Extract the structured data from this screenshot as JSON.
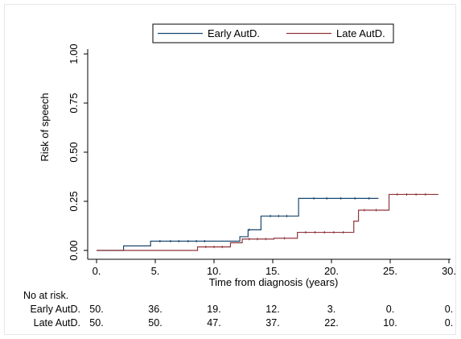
{
  "chart_data": {
    "type": "line",
    "subtype": "step (Kaplan-Meier cumulative risk)",
    "ylabel": "Risk of speech",
    "xlabel": "Time from diagnosis (years)",
    "xlim": [
      0,
      30
    ],
    "ylim": [
      0,
      1
    ],
    "xticks": [
      0,
      5,
      10,
      15,
      20,
      25,
      30
    ],
    "xtick_labels": [
      "0.",
      "5.",
      "10.",
      "15.",
      "20.",
      "25.",
      "30."
    ],
    "yticks": [
      0,
      0.25,
      0.5,
      0.75,
      1
    ],
    "ytick_labels": [
      "0.00",
      "0.25",
      "0.50",
      "0.75",
      "1.00"
    ],
    "grid": false,
    "legend_position": "top",
    "series": [
      {
        "name": "Early AutD.",
        "color": "#1a476f",
        "x": [
          0,
          2.3,
          4.6,
          9.8,
          12.2,
          12.9,
          14.0,
          17.2,
          24.0
        ],
        "y": [
          0,
          0.023,
          0.047,
          0.047,
          0.07,
          0.105,
          0.175,
          0.265,
          0.265
        ],
        "censored_x": [
          5.4,
          6.3,
          7.0,
          7.8,
          8.5,
          9.2,
          13.0,
          14.8,
          15.5,
          16.2,
          18.5,
          19.6,
          20.8,
          22.0,
          23.2
        ]
      },
      {
        "name": "Late AutD.",
        "color": "#90353b",
        "x": [
          0,
          8.6,
          11.4,
          12.4,
          15.1,
          17.1,
          21.9,
          22.3,
          24.9,
          29.1
        ],
        "y": [
          0,
          0.018,
          0.039,
          0.058,
          0.062,
          0.092,
          0.149,
          0.205,
          0.285,
          0.285
        ],
        "censored_x": [
          9.3,
          10.0,
          10.7,
          13.0,
          13.7,
          14.4,
          16.0,
          17.8,
          18.6,
          19.4,
          20.2,
          21.0,
          22.8,
          23.8,
          25.6,
          26.4,
          27.2,
          28.0
        ]
      }
    ],
    "risk_table": {
      "title": "No at risk.",
      "times": [
        0,
        5,
        10,
        15,
        20,
        25,
        30
      ],
      "rows": [
        {
          "label": "Early AutD.",
          "values": [
            "50.",
            "36.",
            "19.",
            "12.",
            "3.",
            "0.",
            "0."
          ]
        },
        {
          "label": "Late AutD.",
          "values": [
            "50.",
            "50.",
            "47.",
            "37.",
            "22.",
            "10.",
            "0."
          ]
        }
      ]
    }
  }
}
